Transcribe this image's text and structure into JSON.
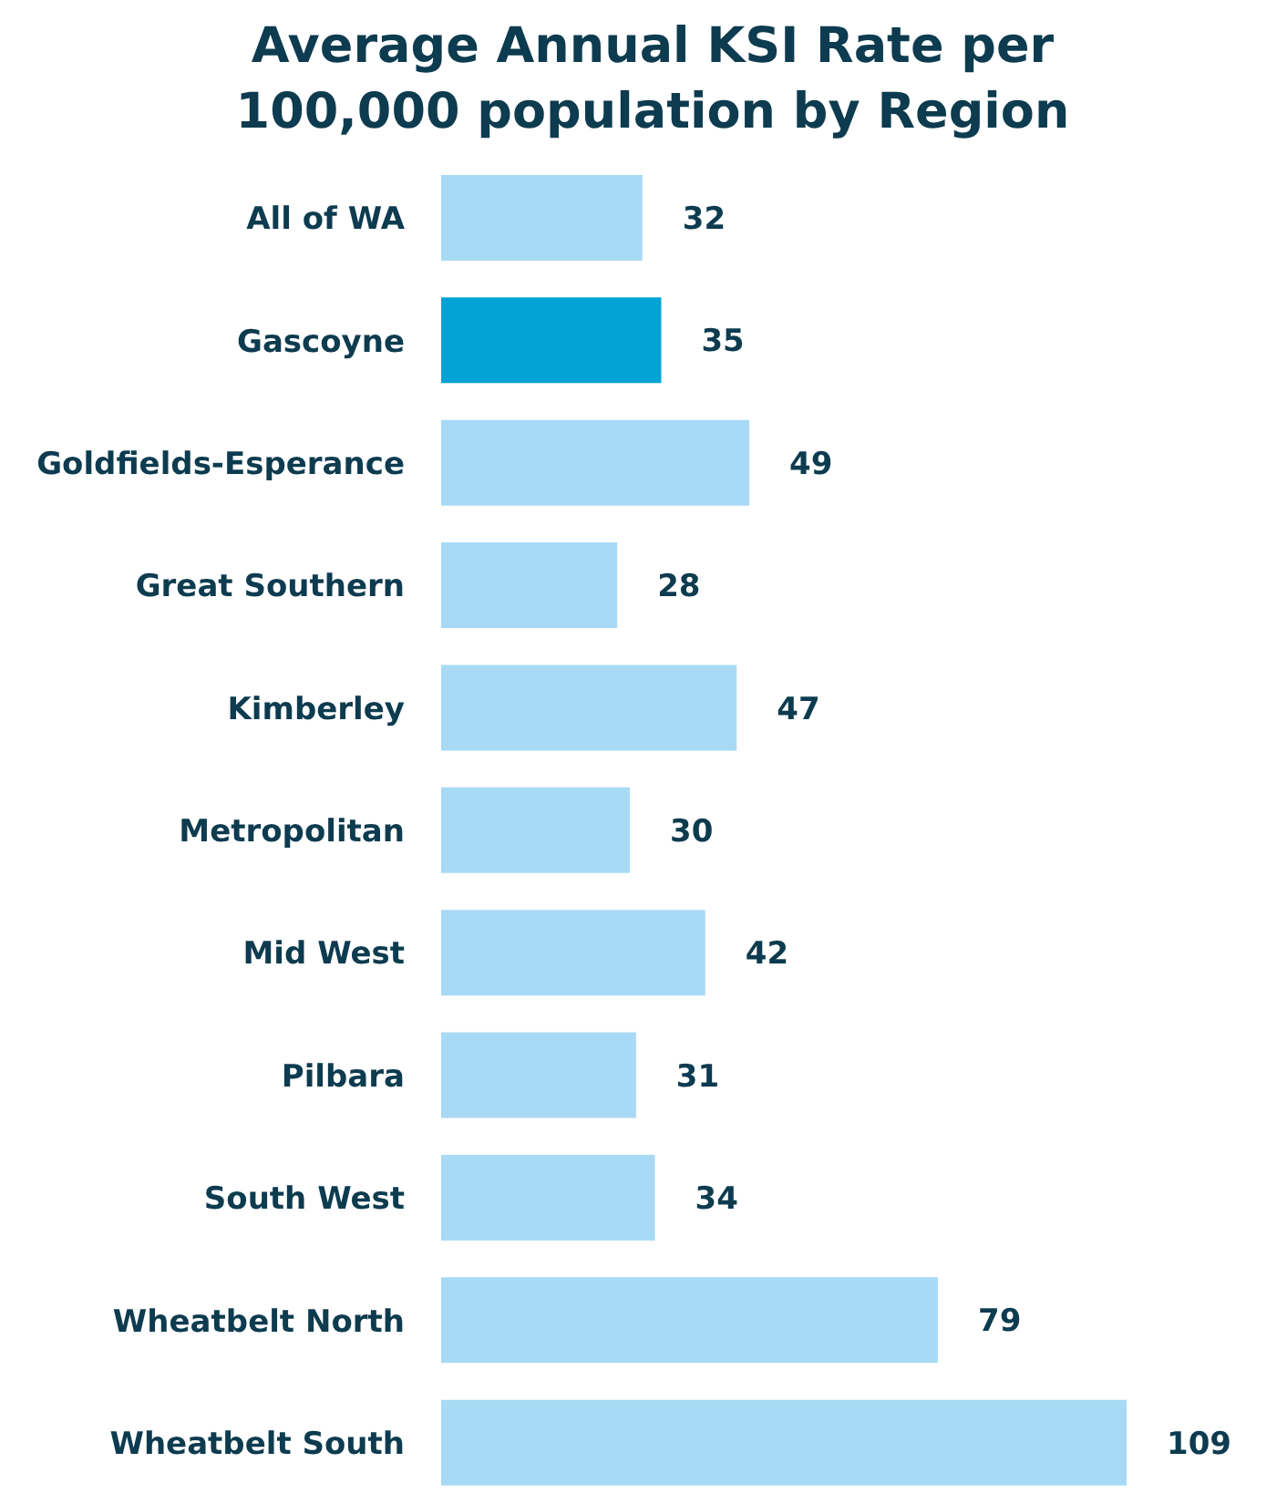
{
  "chart_data": {
    "type": "bar",
    "orientation": "horizontal",
    "title": "Average Annual KSI Rate per 100,000 population by Region",
    "categories": [
      "All of WA",
      "Gascoyne",
      "Goldfields-Esperance",
      "Great Southern",
      "Kimberley",
      "Metropolitan",
      "Mid West",
      "Pilbara",
      "South West",
      "Wheatbelt North",
      "Wheatbelt South"
    ],
    "values": [
      32,
      35,
      49,
      28,
      47,
      30,
      42,
      31,
      34,
      79,
      109
    ],
    "colors": [
      "#a8daf5",
      "#00a3d4",
      "#a8daf5",
      "#a8daf5",
      "#a8daf5",
      "#a8daf5",
      "#a8daf5",
      "#a8daf5",
      "#a8daf5",
      "#a8daf5",
      "#a8daf5"
    ],
    "data_labels": true,
    "grid": false,
    "legend": false
  }
}
